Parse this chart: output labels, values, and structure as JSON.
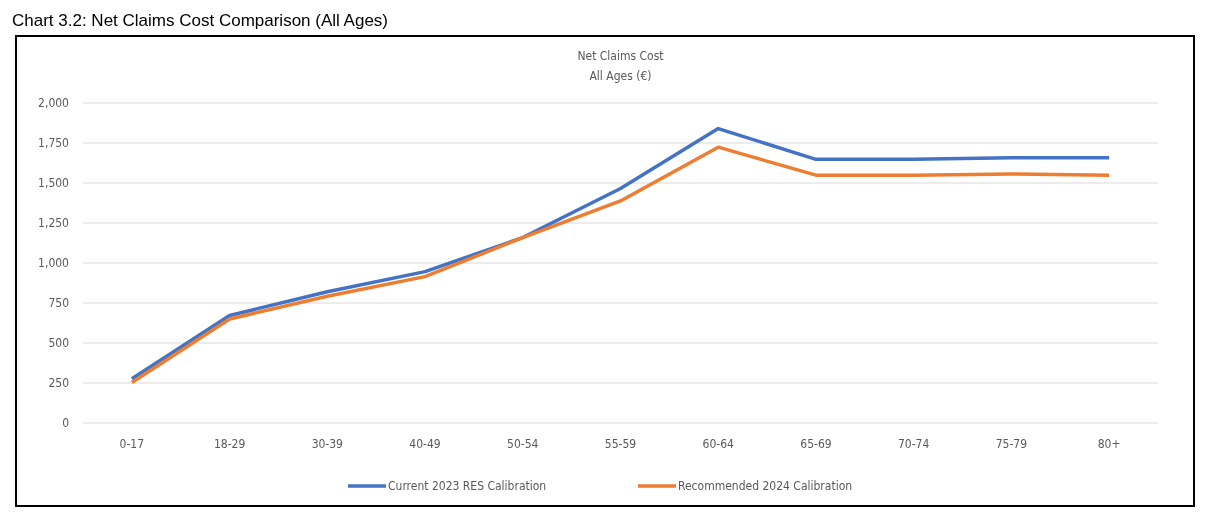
{
  "chart_data": {
    "type": "line",
    "title": "Net Claims Cost",
    "subtitle": "All Ages (€)",
    "annotations": [
      "Chart 3.2: Net Claims Cost Comparison (All Ages)"
    ],
    "categories": [
      "0-17",
      "18-29",
      "30-39",
      "40-49",
      "50-54",
      "55-59",
      "60-64",
      "65-69",
      "70-74",
      "75-79",
      "80+"
    ],
    "series": [
      {
        "name": "Current 2023 RES Calibration",
        "color": "#4472c4",
        "values": [
          277,
          672,
          820,
          946,
          1159,
          1466,
          1840,
          1648,
          1648,
          1658,
          1658
        ]
      },
      {
        "name": "Recommended 2024 Calibration",
        "color": "#ed7d31",
        "values": [
          253,
          650,
          792,
          915,
          1159,
          1388,
          1724,
          1549,
          1549,
          1556,
          1549
        ]
      }
    ],
    "ylim": [
      0,
      2000
    ],
    "yticks": [
      {
        "value": 0,
        "label": "0"
      },
      {
        "value": 250,
        "label": "250"
      },
      {
        "value": 500,
        "label": "500"
      },
      {
        "value": 750,
        "label": "750"
      },
      {
        "value": 1000,
        "label": "1,000"
      },
      {
        "value": 1250,
        "label": "1,250"
      },
      {
        "value": 1500,
        "label": "1,500"
      },
      {
        "value": 1750,
        "label": "1,750"
      },
      {
        "value": 2000,
        "label": "2,000"
      }
    ],
    "grid": "y",
    "legend": "bottom",
    "marker": "none",
    "line_style": "solid"
  }
}
